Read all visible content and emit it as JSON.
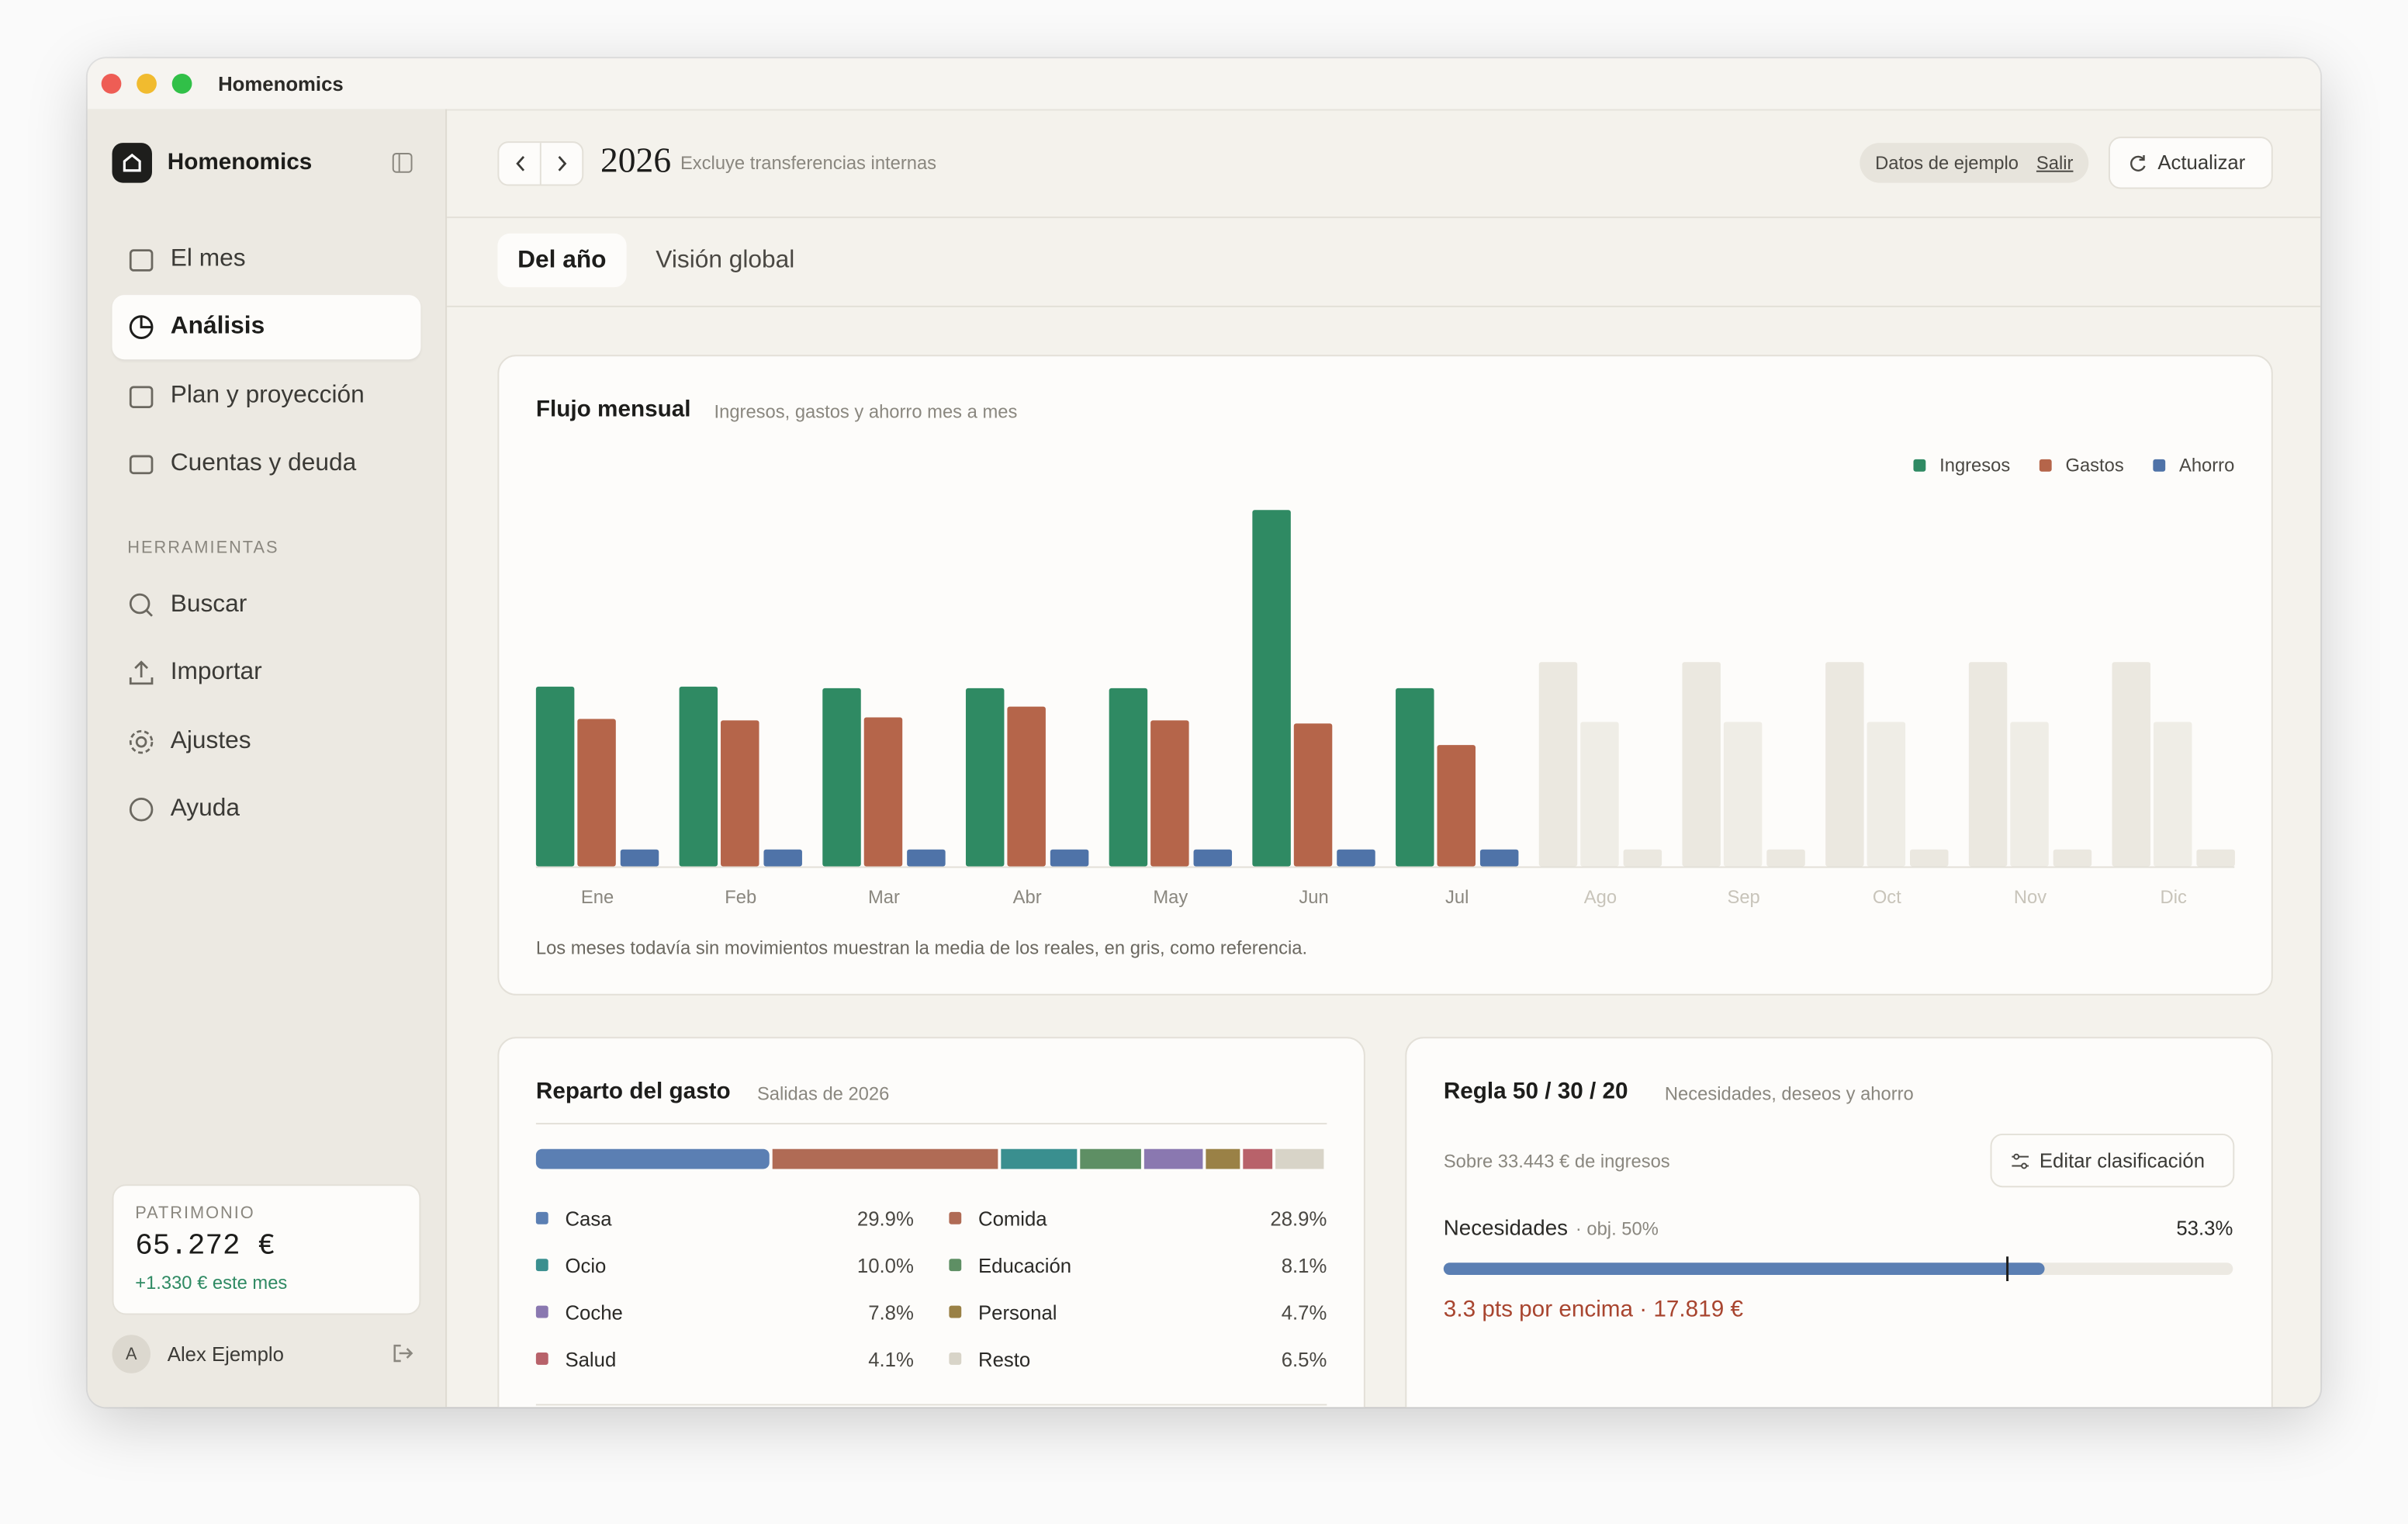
{
  "window_title": "Homenomics",
  "sidebar": {
    "brand": "Homenomics",
    "nav": [
      "El mes",
      "Análisis",
      "Plan y proyección",
      "Cuentas y deuda"
    ],
    "tools_heading": "HERRAMIENTAS",
    "tools": [
      "Buscar",
      "Importar",
      "Ajustes",
      "Ayuda"
    ],
    "net_worth": {
      "label": "PATRIMONIO",
      "value": "65.272 €",
      "change": "+1.330 € este mes"
    },
    "user": {
      "initial": "A",
      "name": "Alex Ejemplo"
    }
  },
  "header": {
    "year": "2026",
    "note": "Excluye transferencias internas",
    "sample_label": "Datos de ejemplo",
    "exit": "Salir",
    "refresh": "Actualizar"
  },
  "tabs": [
    "Del año",
    "Visión global"
  ],
  "chart_data": {
    "type": "bar",
    "title": "Flujo mensual",
    "subtitle": "Ingresos, gastos y ahorro mes a mes",
    "categories": [
      "Ene",
      "Feb",
      "Mar",
      "Abr",
      "May",
      "Jun",
      "Jul",
      "Ago",
      "Sep",
      "Oct",
      "Nov",
      "Dic"
    ],
    "series": [
      {
        "name": "Ingresos",
        "color": "#2f8a63",
        "reference_color": "#ebe8e0",
        "values": [
          117,
          117,
          116,
          116,
          116,
          232,
          116,
          133,
          133,
          133,
          133,
          133
        ]
      },
      {
        "name": "Gastos",
        "color": "#b5654a",
        "reference_color": "#efede6",
        "values": [
          96,
          95,
          97,
          104,
          95,
          93,
          79,
          94,
          94,
          94,
          94,
          94
        ]
      },
      {
        "name": "Ahorro",
        "color": "#4f73a8",
        "reference_color": "#ebe8e0",
        "values": [
          11,
          11,
          11,
          11,
          11,
          11,
          11,
          11,
          11,
          11,
          11,
          11
        ]
      }
    ],
    "reference_months": [
      "Ago",
      "Sep",
      "Oct",
      "Nov",
      "Dic"
    ],
    "ylim": [
      0,
      240
    ],
    "legend": "top-right",
    "footnote": "Los meses todavía sin movimientos muestran la media de los reales, en gris, como referencia."
  },
  "spending": {
    "title": "Reparto del gasto",
    "subtitle": "Salidas de 2026",
    "categories": [
      {
        "name": "Casa",
        "value": 29.9,
        "value_label": "29.9%",
        "color": "#5b7fb3"
      },
      {
        "name": "Comida",
        "value": 28.9,
        "value_label": "28.9%",
        "color": "#b06b55"
      },
      {
        "name": "Ocio",
        "value": 10.0,
        "value_label": "10.0%",
        "color": "#3a8f8f"
      },
      {
        "name": "Educación",
        "value": 8.1,
        "value_label": "8.1%",
        "color": "#5e8f64"
      },
      {
        "name": "Coche",
        "value": 7.8,
        "value_label": "7.8%",
        "color": "#8a78b0"
      },
      {
        "name": "Personal",
        "value": 4.7,
        "value_label": "4.7%",
        "color": "#9a8146"
      },
      {
        "name": "Salud",
        "value": 4.1,
        "value_label": "4.1%",
        "color": "#b8626a"
      },
      {
        "name": "Resto",
        "value": 6.5,
        "value_label": "6.5%",
        "color": "#d8d4c8"
      }
    ]
  },
  "rule": {
    "title": "Regla 50 / 30 / 20",
    "subtitle": "Necesidades, deseos y ahorro",
    "income_note": "Sobre 33.443 € de ingresos",
    "edit": "Editar clasificación",
    "xlim": [
      0,
      70
    ],
    "rows": [
      {
        "name": "Necesidades",
        "target_label": "· obj. 50%",
        "target": 50,
        "value": 53.3,
        "value_label": "53.3%",
        "color": "#5b7fb3",
        "status": "3.3 pts por encima · 17.819 €"
      }
    ]
  }
}
